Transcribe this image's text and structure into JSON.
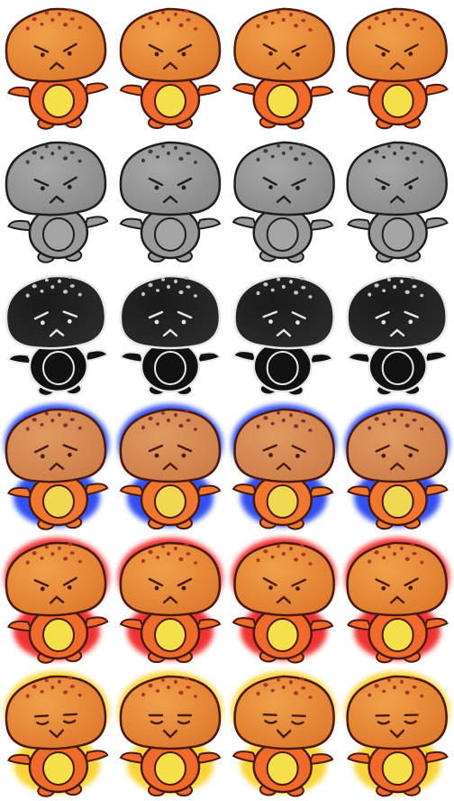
{
  "sheet": {
    "columns": 4,
    "rows": [
      {
        "name": "normal-angry",
        "expression": "angry",
        "head_color": "#f0a04a",
        "head_shade": "#e07a2e",
        "body_color": "#f06a2a",
        "belly_color": "#f5e04a",
        "line_color": "#4a1a10",
        "spot_color": "#b0302a",
        "glow_color": null,
        "variant_icons": [
          "mushroom-sprite-icon",
          "mushroom-sprite-icon",
          "mushroom-sprite-icon",
          "mushroom-sprite-icon"
        ]
      },
      {
        "name": "grayscale-angry",
        "expression": "angry",
        "head_color": "#a8a8a8",
        "head_shade": "#8a8a8a",
        "body_color": "#9a9a9a",
        "belly_color": "#a5a5a5",
        "line_color": "#1e1e1e",
        "spot_color": "#3a3a3a",
        "glow_color": null,
        "variant_icons": [
          "mushroom-sprite-icon",
          "mushroom-sprite-icon",
          "mushroom-sprite-icon",
          "mushroom-sprite-icon"
        ]
      },
      {
        "name": "dark-sad",
        "expression": "sad",
        "head_color": "#1a1a1a",
        "head_shade": "#2a2a2a",
        "body_color": "#111111",
        "belly_color": "#111111",
        "line_color": "#e8e8e8",
        "spot_color": "#c8c8c8",
        "glow_color": null,
        "variant_icons": [
          "mushroom-sprite-icon",
          "mushroom-sprite-icon",
          "mushroom-sprite-icon",
          "mushroom-sprite-icon"
        ]
      },
      {
        "name": "blue-glow-sad",
        "expression": "sad",
        "head_color": "#e09a60",
        "head_shade": "#cf7e4a",
        "body_color": "#f0782e",
        "belly_color": "#f2d850",
        "line_color": "#4a1a10",
        "spot_color": "#8a2a3a",
        "glow_color": "#1a3cf0",
        "variant_icons": [
          "mushroom-sprite-icon",
          "mushroom-sprite-icon",
          "mushroom-sprite-icon",
          "mushroom-sprite-icon"
        ]
      },
      {
        "name": "red-glow-angry",
        "expression": "angry",
        "head_color": "#f0a04a",
        "head_shade": "#e07a2e",
        "body_color": "#f06a2a",
        "belly_color": "#f5e04a",
        "line_color": "#4a1a10",
        "spot_color": "#b0302a",
        "glow_color": "#f01a1a",
        "variant_icons": [
          "mushroom-sprite-icon",
          "mushroom-sprite-icon",
          "mushroom-sprite-icon",
          "mushroom-sprite-icon"
        ]
      },
      {
        "name": "yellow-glow-happy",
        "expression": "happy",
        "head_color": "#f0a04a",
        "head_shade": "#e07a2e",
        "body_color": "#f06a2a",
        "belly_color": "#f5e04a",
        "line_color": "#4a1a10",
        "spot_color": "#b0302a",
        "glow_color": "#f8d020",
        "variant_icons": [
          "mushroom-sprite-icon",
          "mushroom-sprite-icon",
          "mushroom-sprite-icon",
          "mushroom-sprite-icon"
        ]
      }
    ]
  }
}
